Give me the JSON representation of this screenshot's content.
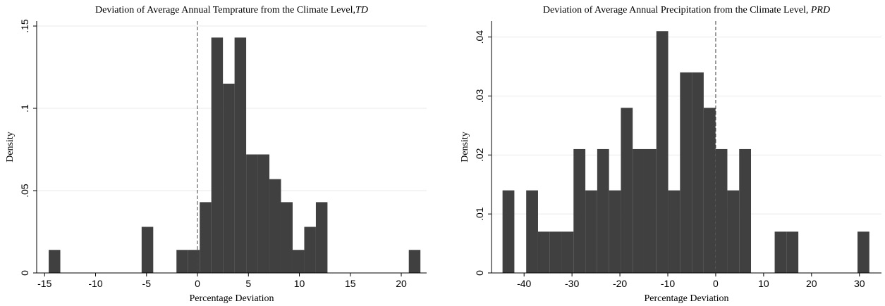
{
  "chart_data": [
    {
      "type": "histogram",
      "title": "Deviation of Average Annual Temprature from the Climate Level,",
      "title_italic": "TD",
      "x_label": "Percentage Deviation",
      "y_label": "Density",
      "color": "#404040",
      "bins": [
        -14.6,
        -13.46,
        -12.32,
        -11.18,
        -10.04,
        -8.9,
        -7.76,
        -6.62,
        -5.48,
        -4.34,
        -3.2,
        -2.06,
        -0.92,
        0.22,
        1.36,
        2.5,
        3.64,
        4.78,
        5.92,
        7.06,
        8.2,
        9.34,
        10.48,
        11.62,
        12.76,
        13.9,
        15.04,
        16.18,
        17.32,
        18.46,
        19.6,
        20.74,
        21.88
      ],
      "values": [
        0.014,
        0,
        0,
        0,
        0,
        0,
        0,
        0,
        0.028,
        0,
        0,
        0.014,
        0.014,
        0.043,
        0.143,
        0.115,
        0.143,
        0.072,
        0.072,
        0.057,
        0.043,
        0.014,
        0.028,
        0.043,
        0,
        0,
        0,
        0,
        0,
        0,
        0,
        0.014
      ],
      "xlim": [
        -15.78,
        22.49
      ],
      "ylim": [
        0,
        0.153
      ],
      "xticks": [
        -15,
        -10,
        -5,
        0,
        5,
        10,
        15,
        20
      ],
      "yticks": [
        0,
        {
          "value": 0.05,
          "label": ".05"
        },
        {
          "value": 0.1,
          "label": ".1"
        },
        {
          "value": 0.15,
          "label": ".15"
        }
      ],
      "xline": 0,
      "grid": true
    },
    {
      "type": "histogram",
      "title": "Deviation of Average Annual Precipitation from the Climate Level, ",
      "title_italic": "PRD",
      "x_label": "Percentage Deviation",
      "y_label": "Density",
      "color": "#404040",
      "bins": [
        -44.5,
        -42.03,
        -39.56,
        -37.09,
        -34.62,
        -32.15,
        -29.68,
        -27.21,
        -24.74,
        -22.27,
        -19.8,
        -17.33,
        -14.86,
        -12.39,
        -9.92,
        -7.45,
        -4.98,
        -2.51,
        -0.04,
        2.43,
        4.9,
        7.37,
        9.84,
        12.31,
        14.78,
        17.25,
        19.72,
        22.19,
        24.66,
        27.13,
        29.6,
        32.07
      ],
      "values": [
        0.014,
        0,
        0.014,
        0.007,
        0.007,
        0.007,
        0.021,
        0.014,
        0.021,
        0.014,
        0.028,
        0.021,
        0.021,
        0.041,
        0.014,
        0.034,
        0.034,
        0.028,
        0.021,
        0.014,
        0.021,
        0,
        0,
        0.007,
        0.007,
        0,
        0,
        0,
        0,
        0,
        0.007
      ],
      "xlim": [
        -46.8,
        34.6
      ],
      "ylim": [
        0,
        0.0427
      ],
      "xticks": [
        -40,
        -30,
        -20,
        -10,
        0,
        10,
        20,
        30
      ],
      "yticks": [
        0,
        {
          "value": 0.01,
          "label": ".01"
        },
        {
          "value": 0.02,
          "label": ".02"
        },
        {
          "value": 0.03,
          "label": ".03"
        },
        {
          "value": 0.04,
          "label": ".04"
        }
      ],
      "xline": 0,
      "grid": true
    }
  ]
}
